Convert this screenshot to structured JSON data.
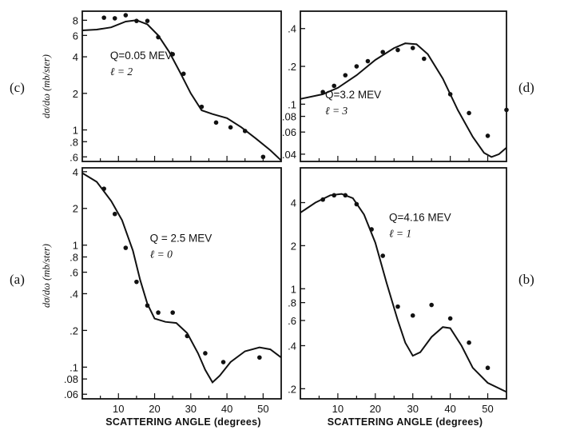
{
  "figure": {
    "panel_labels": {
      "a": "(a)",
      "b": "(b)",
      "c": "(c)",
      "d": "(d)"
    },
    "y_axis_label": "dσ/dω (mb/ster)",
    "x_axis_label": "SCATTERING ANGLE (degrees)"
  },
  "chart_data": [
    {
      "panel": "(c)",
      "type": "scatter",
      "annotation": [
        "Q=0.05 MEV",
        "ℓ = 2"
      ],
      "ylabel": "dσ/dω (mb/ster)",
      "yscale": "log",
      "ylim": [
        0.55,
        9.5
      ],
      "xlim": [
        0,
        55
      ],
      "yticks": [
        ".6",
        ".8",
        "1",
        "2",
        "4",
        "6",
        "8"
      ],
      "points": [
        [
          6,
          8.4
        ],
        [
          9,
          8.3
        ],
        [
          12,
          8.8
        ],
        [
          15,
          7.9
        ],
        [
          18,
          7.9
        ],
        [
          21,
          5.8
        ],
        [
          25,
          4.2
        ],
        [
          28,
          2.9
        ],
        [
          33,
          1.55
        ],
        [
          37,
          1.15
        ],
        [
          41,
          1.05
        ],
        [
          45,
          0.98
        ],
        [
          50,
          0.6
        ]
      ],
      "curve": [
        [
          0,
          6.6
        ],
        [
          4,
          6.7
        ],
        [
          8,
          7.0
        ],
        [
          12,
          7.8
        ],
        [
          15,
          8.0
        ],
        [
          18,
          7.4
        ],
        [
          21,
          6.0
        ],
        [
          24,
          4.4
        ],
        [
          27,
          3.0
        ],
        [
          30,
          2.0
        ],
        [
          33,
          1.45
        ],
        [
          36,
          1.35
        ],
        [
          40,
          1.25
        ],
        [
          44,
          1.05
        ],
        [
          48,
          0.85
        ],
        [
          52,
          0.68
        ],
        [
          55,
          0.56
        ]
      ]
    },
    {
      "panel": "(d)",
      "type": "scatter",
      "annotation": [
        "Q=3.2 MEV",
        "ℓ = 3"
      ],
      "yscale": "log",
      "ylim": [
        0.035,
        0.55
      ],
      "xlim": [
        0,
        55
      ],
      "yticks": [
        ".04",
        ".06",
        ".08",
        ".1",
        ".2",
        ".4"
      ],
      "points": [
        [
          6,
          0.125
        ],
        [
          9,
          0.14
        ],
        [
          12,
          0.17
        ],
        [
          15,
          0.2
        ],
        [
          18,
          0.22
        ],
        [
          22,
          0.26
        ],
        [
          26,
          0.27
        ],
        [
          30,
          0.28
        ],
        [
          33,
          0.23
        ],
        [
          40,
          0.12
        ],
        [
          45,
          0.085
        ],
        [
          50,
          0.056
        ],
        [
          55,
          0.09
        ]
      ],
      "curve": [
        [
          0,
          0.11
        ],
        [
          6,
          0.12
        ],
        [
          10,
          0.135
        ],
        [
          15,
          0.17
        ],
        [
          20,
          0.225
        ],
        [
          25,
          0.28
        ],
        [
          28,
          0.305
        ],
        [
          31,
          0.3
        ],
        [
          34,
          0.25
        ],
        [
          38,
          0.16
        ],
        [
          42,
          0.09
        ],
        [
          46,
          0.055
        ],
        [
          49,
          0.041
        ],
        [
          51,
          0.038
        ],
        [
          53,
          0.04
        ],
        [
          55,
          0.045
        ]
      ]
    },
    {
      "panel": "(a)",
      "type": "scatter",
      "annotation": [
        "Q = 2.5 MEV",
        "ℓ = 0"
      ],
      "ylabel": "dσ/dω (mb/ster)",
      "yscale": "log",
      "ylim": [
        0.055,
        4.3
      ],
      "xlim": [
        0,
        55
      ],
      "xticks": [
        10,
        20,
        30,
        40,
        50
      ],
      "xlabel": "SCATTERING ANGLE (degrees)",
      "yticks": [
        ".06",
        ".08",
        ".1",
        ".2",
        ".4",
        ".6",
        ".8",
        "1",
        "2",
        "4"
      ],
      "points": [
        [
          6,
          2.9
        ],
        [
          9,
          1.8
        ],
        [
          12,
          0.95
        ],
        [
          15,
          0.5
        ],
        [
          18,
          0.32
        ],
        [
          21,
          0.28
        ],
        [
          25,
          0.28
        ],
        [
          29,
          0.18
        ],
        [
          34,
          0.13
        ],
        [
          39,
          0.11
        ],
        [
          49,
          0.12
        ]
      ],
      "curve": [
        [
          0,
          3.9
        ],
        [
          4,
          3.3
        ],
        [
          8,
          2.3
        ],
        [
          11,
          1.6
        ],
        [
          14,
          0.9
        ],
        [
          16,
          0.52
        ],
        [
          18,
          0.33
        ],
        [
          20,
          0.25
        ],
        [
          23,
          0.235
        ],
        [
          26,
          0.23
        ],
        [
          29,
          0.19
        ],
        [
          32,
          0.13
        ],
        [
          34,
          0.095
        ],
        [
          36,
          0.075
        ],
        [
          38,
          0.085
        ],
        [
          41,
          0.11
        ],
        [
          45,
          0.135
        ],
        [
          49,
          0.145
        ],
        [
          52,
          0.14
        ],
        [
          55,
          0.12
        ]
      ]
    },
    {
      "panel": "(b)",
      "type": "scatter",
      "annotation": [
        "Q=4.16 MEV",
        "ℓ = 1"
      ],
      "yscale": "log",
      "ylim": [
        0.17,
        7.0
      ],
      "xlim": [
        0,
        55
      ],
      "xticks": [
        10,
        20,
        30,
        40,
        50
      ],
      "xlabel": "SCATTERING ANGLE (degrees)",
      "yticks": [
        ".2",
        ".4",
        ".6",
        ".8",
        "1",
        "2",
        "4"
      ],
      "points": [
        [
          6,
          4.2
        ],
        [
          9,
          4.5
        ],
        [
          12,
          4.5
        ],
        [
          15,
          3.9
        ],
        [
          19,
          2.6
        ],
        [
          22,
          1.7
        ],
        [
          26,
          0.75
        ],
        [
          30,
          0.65
        ],
        [
          35,
          0.77
        ],
        [
          40,
          0.62
        ],
        [
          45,
          0.42
        ],
        [
          50,
          0.28
        ]
      ],
      "curve": [
        [
          0,
          3.4
        ],
        [
          4,
          4.0
        ],
        [
          8,
          4.5
        ],
        [
          11,
          4.6
        ],
        [
          14,
          4.3
        ],
        [
          17,
          3.3
        ],
        [
          20,
          2.1
        ],
        [
          23,
          1.1
        ],
        [
          26,
          0.6
        ],
        [
          28,
          0.42
        ],
        [
          30,
          0.34
        ],
        [
          32,
          0.36
        ],
        [
          35,
          0.46
        ],
        [
          38,
          0.54
        ],
        [
          40,
          0.53
        ],
        [
          43,
          0.4
        ],
        [
          46,
          0.28
        ],
        [
          50,
          0.22
        ],
        [
          55,
          0.19
        ]
      ]
    }
  ]
}
